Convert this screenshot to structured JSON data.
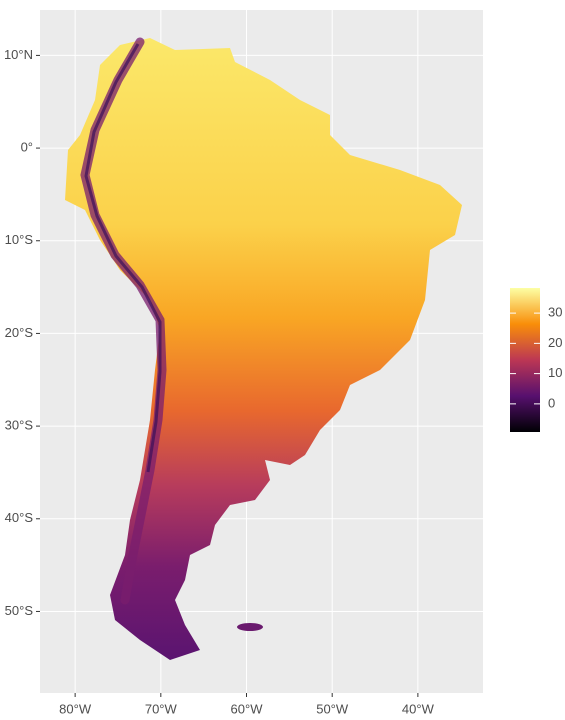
{
  "map": {
    "xlim": [
      -84.1,
      -32.4
    ],
    "ylim": [
      -58.8,
      14.9
    ],
    "xticks": [
      {
        "value": -80,
        "label": "80°W"
      },
      {
        "value": -70,
        "label": "70°W"
      },
      {
        "value": -60,
        "label": "60°W"
      },
      {
        "value": -50,
        "label": "50°W"
      },
      {
        "value": -40,
        "label": "40°W"
      }
    ],
    "yticks": [
      {
        "value": 10,
        "label": "10°N"
      },
      {
        "value": 0,
        "label": "0°"
      },
      {
        "value": -10,
        "label": "10°S"
      },
      {
        "value": -20,
        "label": "20°S"
      },
      {
        "value": -30,
        "label": "30°S"
      },
      {
        "value": -40,
        "label": "40°S"
      },
      {
        "value": -50,
        "label": "50°S"
      }
    ],
    "legend": {
      "lim": [
        -9.3,
        38.3
      ],
      "ticks": [
        0,
        10,
        20,
        30
      ],
      "colors": [
        "#000004",
        "#57106e",
        "#bc3754",
        "#f98e09",
        "#fcffa4"
      ]
    }
  }
}
